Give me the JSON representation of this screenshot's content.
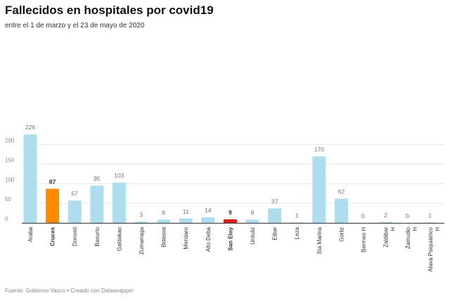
{
  "header": {
    "title": "Fallecidos en hospitales por covid19",
    "subtitle": "entre el 1 de marzo y el 23 de mayo de 2020"
  },
  "footer": {
    "source": "Fuente: Gobierno Vasco • Creado con Datawrapper"
  },
  "colors": {
    "default_bar": "#aedeee",
    "highlight_cruces": "#ff8a00",
    "highlight_san_eloy": "#d92020",
    "grid": "#e6e6e6",
    "axis": "#333333"
  },
  "chart_data": {
    "type": "bar",
    "title": "Fallecidos en hospitales por covid19",
    "subtitle": "entre el 1 de marzo y el 23 de mayo de 2020",
    "ylim": [
      0,
      240
    ],
    "yticks": [
      0,
      50,
      100,
      150,
      200
    ],
    "grid": true,
    "categories": [
      [
        "Araba"
      ],
      [
        "Cruces"
      ],
      [
        "Donosti"
      ],
      [
        "Basurto"
      ],
      [
        "Galdakao"
      ],
      [
        "Zumarraga"
      ],
      [
        "Bidasoa"
      ],
      [
        "Mendaro"
      ],
      [
        "Alto Deba"
      ],
      [
        "San Eloy"
      ],
      [
        "Urduliz"
      ],
      [
        "Eibar"
      ],
      [
        "Leza"
      ],
      [
        "Sta Marina"
      ],
      [
        "Gorliz"
      ],
      [
        "Bermeo H"
      ],
      [
        "Zaldibar",
        "H"
      ],
      [
        "Zamudio",
        "H"
      ],
      [
        "Alava Psiquiátrico",
        "H"
      ]
    ],
    "values": [
      226,
      87,
      57,
      95,
      103,
      3,
      8,
      11,
      14,
      9,
      8,
      37,
      1,
      170,
      62,
      0,
      2,
      0,
      1
    ],
    "value_labels": [
      "226",
      "87",
      "57",
      "95",
      "103",
      "3",
      "8",
      "11",
      "14",
      "9",
      "8",
      "37",
      "1",
      "170",
      "62",
      "0.",
      "2",
      "0.",
      "1"
    ],
    "highlight": {
      "1": "highlight_cruces",
      "9": "highlight_san_eloy"
    }
  }
}
